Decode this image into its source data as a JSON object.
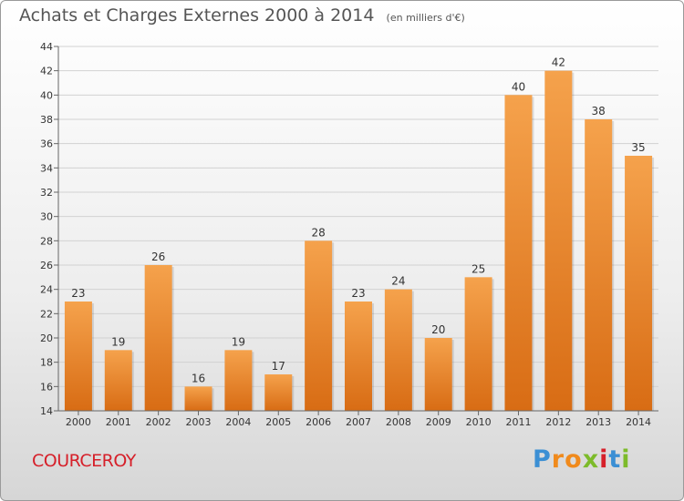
{
  "header": {
    "title": "Achats et Charges Externes 2000 à 2014",
    "unit": "(en milliers d'€)"
  },
  "footer": {
    "commune": "COURCEROY",
    "brand": "Proxiti"
  },
  "colors": {
    "bar_light": "#f5a24c",
    "bar_dark": "#d86c14",
    "commune_text": "#d6202a",
    "brand_letters": [
      "#3b8fd4",
      "#f08a1c",
      "#f08a1c",
      "#7dbb2a",
      "#d6202a",
      "#3b8fd4",
      "#7dbb2a"
    ]
  },
  "chart_data": {
    "type": "bar",
    "title": "Achats et Charges Externes 2000 à 2014",
    "subtitle": "(en milliers d'€)",
    "categories": [
      "2000",
      "2001",
      "2002",
      "2003",
      "2004",
      "2005",
      "2006",
      "2007",
      "2008",
      "2009",
      "2010",
      "2011",
      "2012",
      "2013",
      "2014"
    ],
    "values": [
      23,
      19,
      26,
      16,
      19,
      17,
      28,
      23,
      24,
      20,
      25,
      40,
      42,
      38,
      35
    ],
    "ylim": [
      14,
      44
    ],
    "yticks": [
      14,
      16,
      18,
      20,
      22,
      24,
      26,
      28,
      30,
      32,
      34,
      36,
      38,
      40,
      42,
      44
    ],
    "grid": true,
    "data_labels": true
  }
}
